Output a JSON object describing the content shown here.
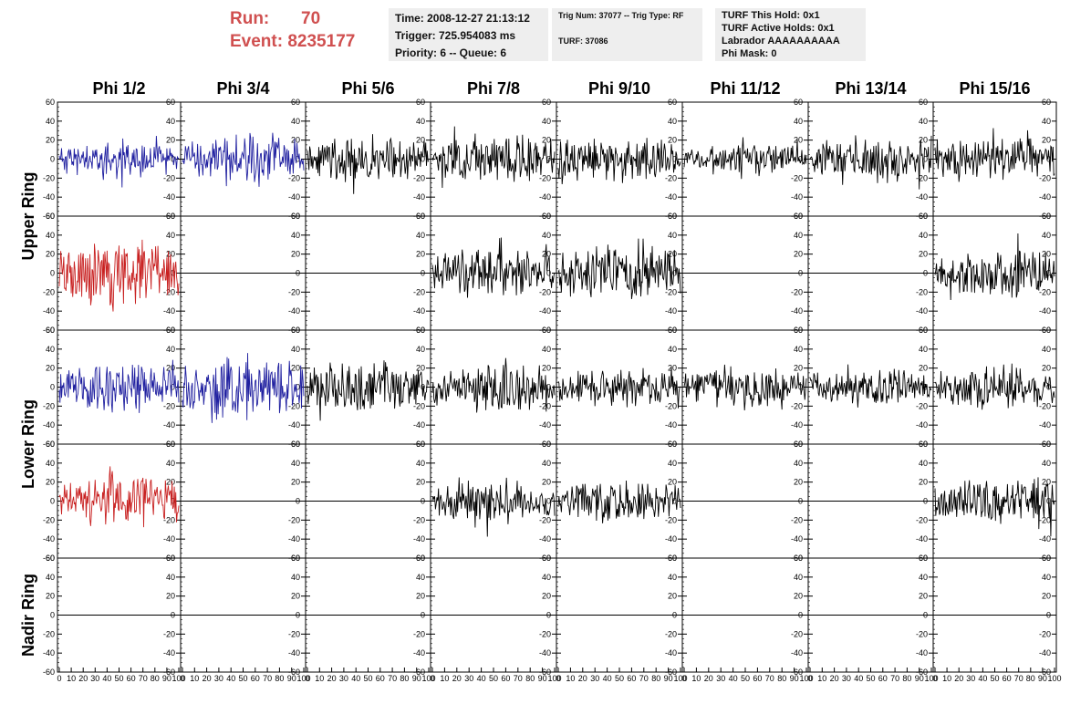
{
  "header": {
    "run_label": "Run:",
    "run_value": "70",
    "event_label": "Event:",
    "event_value": "8235177",
    "time": "Time: 2008-12-27 21:13:12",
    "trigger": "Trigger: 725.954083 ms",
    "priority": "Priority: 6 -- Queue: 6",
    "trig_num": "Trig Num: 37077 -- Trig Type: RF",
    "turf": "TURF: 37086",
    "turf_this_hold": "TURF This Hold: 0x1",
    "turf_active_holds": "TURF Active Holds: 0x1",
    "labrador": "Labrador AAAAAAAAAA",
    "phi_mask": "Phi Mask: 0"
  },
  "colors": {
    "blue": "#2020a0",
    "red": "#c82020",
    "black": "#000000",
    "title_red": "#d05050"
  },
  "chart_data": {
    "type": "line",
    "columns": [
      "Phi 1/2",
      "Phi 3/4",
      "Phi 5/6",
      "Phi 7/8",
      "Phi 9/10",
      "Phi 11/12",
      "Phi 13/14",
      "Phi 15/16"
    ],
    "ring_labels": [
      "Upper Ring",
      "Lower Ring",
      "Nadir Ring"
    ],
    "rows": 5,
    "ylim": [
      -60,
      60
    ],
    "yticks": [
      -60,
      -40,
      -20,
      0,
      20,
      40,
      60
    ],
    "xlim": [
      0,
      100
    ],
    "xtick_labels": [
      "0",
      "10",
      "20",
      "30",
      "40",
      "50",
      "60",
      "70",
      "80",
      "90",
      "100"
    ],
    "grid": false,
    "panels": [
      [
        {
          "color": "blue",
          "amp": 30,
          "seed": 11
        },
        {
          "color": "blue",
          "amp": 42,
          "seed": 12
        },
        {
          "color": "black",
          "amp": 38,
          "seed": 13
        },
        {
          "color": "black",
          "amp": 40,
          "seed": 14
        },
        {
          "color": "black",
          "amp": 40,
          "seed": 15
        },
        {
          "color": "black",
          "amp": 25,
          "seed": 16
        },
        {
          "color": "black",
          "amp": 38,
          "seed": 17
        },
        {
          "color": "black",
          "amp": 38,
          "seed": 18
        }
      ],
      [
        {
          "color": "red",
          "amp": 55,
          "seed": 21
        },
        {
          "color": "black",
          "amp": 0,
          "seed": 22
        },
        {
          "color": "black",
          "amp": 0,
          "seed": 23
        },
        {
          "color": "black",
          "amp": 40,
          "seed": 24
        },
        {
          "color": "black",
          "amp": 45,
          "seed": 25
        },
        {
          "color": "black",
          "amp": 0,
          "seed": 26
        },
        {
          "color": "black",
          "amp": 0,
          "seed": 27
        },
        {
          "color": "black",
          "amp": 40,
          "seed": 28
        }
      ],
      [
        {
          "color": "blue",
          "amp": 38,
          "seed": 31
        },
        {
          "color": "blue",
          "amp": 50,
          "seed": 32
        },
        {
          "color": "black",
          "amp": 42,
          "seed": 33
        },
        {
          "color": "black",
          "amp": 40,
          "seed": 34
        },
        {
          "color": "black",
          "amp": 30,
          "seed": 35
        },
        {
          "color": "black",
          "amp": 35,
          "seed": 36
        },
        {
          "color": "black",
          "amp": 32,
          "seed": 37
        },
        {
          "color": "black",
          "amp": 35,
          "seed": 38
        }
      ],
      [
        {
          "color": "red",
          "amp": 45,
          "seed": 41
        },
        {
          "color": "black",
          "amp": 0,
          "seed": 42
        },
        {
          "color": "black",
          "amp": 0,
          "seed": 43
        },
        {
          "color": "black",
          "amp": 35,
          "seed": 44
        },
        {
          "color": "black",
          "amp": 35,
          "seed": 45
        },
        {
          "color": "black",
          "amp": 0,
          "seed": 46
        },
        {
          "color": "black",
          "amp": 0,
          "seed": 47
        },
        {
          "color": "black",
          "amp": 45,
          "seed": 48
        }
      ],
      [
        {
          "color": "black",
          "amp": 0,
          "seed": 51
        },
        {
          "color": "black",
          "amp": 0,
          "seed": 52
        },
        {
          "color": "black",
          "amp": 0,
          "seed": 53
        },
        {
          "color": "black",
          "amp": 0,
          "seed": 54
        },
        {
          "color": "black",
          "amp": 0,
          "seed": 55
        },
        {
          "color": "black",
          "amp": 0,
          "seed": 56
        },
        {
          "color": "black",
          "amp": 0,
          "seed": 57
        },
        {
          "color": "black",
          "amp": 0,
          "seed": 58
        }
      ]
    ]
  }
}
